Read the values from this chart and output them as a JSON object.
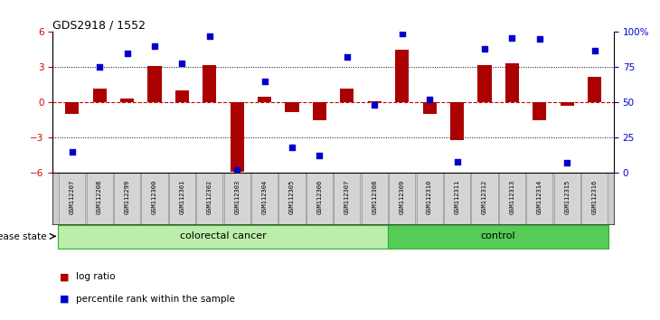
{
  "title": "GDS2918 / 1552",
  "samples": [
    "GSM112207",
    "GSM112208",
    "GSM112299",
    "GSM112300",
    "GSM112301",
    "GSM112302",
    "GSM112303",
    "GSM112304",
    "GSM112305",
    "GSM112306",
    "GSM112307",
    "GSM112308",
    "GSM112309",
    "GSM112310",
    "GSM112311",
    "GSM112312",
    "GSM112313",
    "GSM112314",
    "GSM112315",
    "GSM112316"
  ],
  "log_ratio": [
    -1.0,
    1.2,
    0.3,
    3.1,
    1.0,
    3.2,
    -5.9,
    0.5,
    -0.8,
    -1.5,
    1.2,
    0.1,
    4.5,
    -1.0,
    -3.2,
    3.2,
    3.3,
    -1.5,
    -0.3,
    2.2
  ],
  "percentile": [
    15,
    75,
    85,
    90,
    78,
    97,
    2,
    65,
    18,
    12,
    82,
    48,
    99,
    52,
    8,
    88,
    96,
    95,
    7,
    87
  ],
  "colorectal_count": 12,
  "control_count": 8,
  "bar_color": "#aa0000",
  "dot_color": "#0000cc",
  "hline_color": "#cc0000",
  "dotted_line_color": "#000000",
  "bg_color": "#ffffff",
  "colorectal_color": "#bbeeaa",
  "control_color": "#55cc55",
  "tick_color_left": "#cc0000",
  "tick_color_right": "#0000cc",
  "ylim": [
    -6,
    6
  ],
  "yticks_left": [
    -6,
    -3,
    0,
    3,
    6
  ],
  "yticks_right": [
    0,
    25,
    50,
    75,
    100
  ],
  "dotted_lines": [
    -3,
    3
  ],
  "legend_bar_label": "log ratio",
  "legend_dot_label": "percentile rank within the sample",
  "disease_label": "disease state",
  "colorectal_label": "colorectal cancer",
  "control_label": "control"
}
